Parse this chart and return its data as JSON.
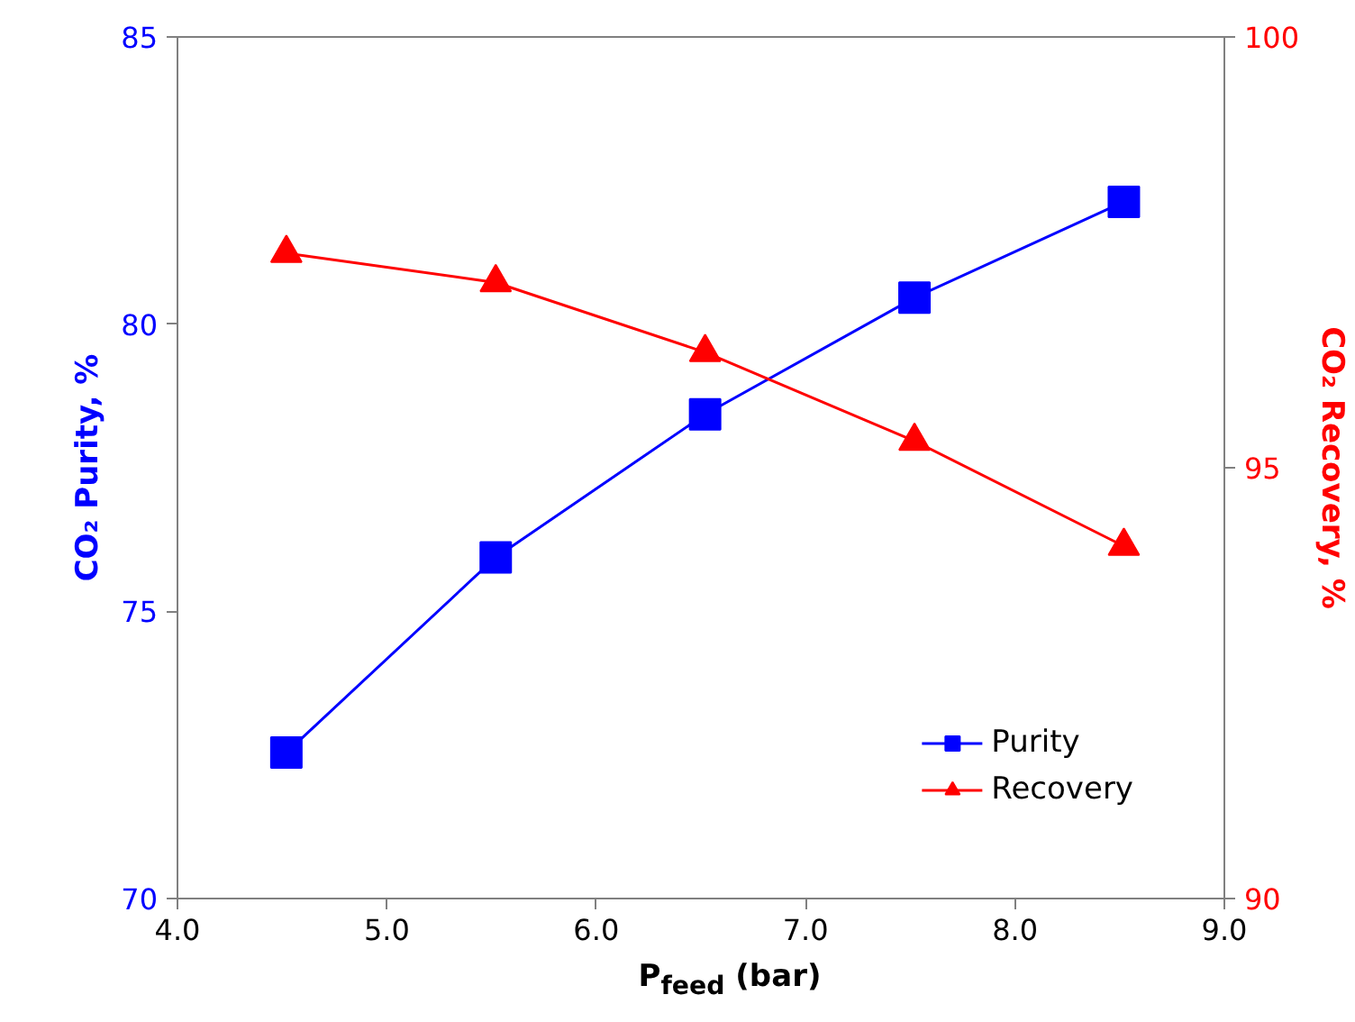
{
  "chart_data": {
    "type": "line",
    "xlabel": "P$_{feed}$ (bar)",
    "ylabel": "CO₂ Purity, %",
    "y2label": "CO₂ Recovery, %",
    "x": [
      4.52,
      5.52,
      6.52,
      7.52,
      8.52
    ],
    "series": [
      {
        "name": "Purity",
        "color": "#0000ff",
        "marker": "square",
        "values": [
          72.54,
          75.94,
          78.43,
          80.46,
          82.13
        ]
      },
      {
        "name": "Recovery",
        "color": "#ff0000",
        "marker": "triangle",
        "axis": "y2",
        "values": [
          97.49,
          97.15,
          96.34,
          95.31,
          94.09
        ]
      }
    ],
    "xlim": [
      4.0,
      9.0
    ],
    "xticks": [
      {
        "value": 4,
        "label": "4.0"
      },
      {
        "value": 5,
        "label": "5.0"
      },
      {
        "value": 6,
        "label": "6.0"
      },
      {
        "value": 7,
        "label": "7.0"
      },
      {
        "value": 8,
        "label": "8.0"
      },
      {
        "value": 9,
        "label": "9.0"
      }
    ],
    "ylim": [
      70,
      85
    ],
    "yticks": [
      70,
      75,
      80,
      85
    ],
    "y2lim": [
      90,
      100
    ],
    "y2ticks": [
      90,
      95,
      100
    ],
    "grid": false,
    "legend": "bottom right",
    "line_style": "solid"
  }
}
